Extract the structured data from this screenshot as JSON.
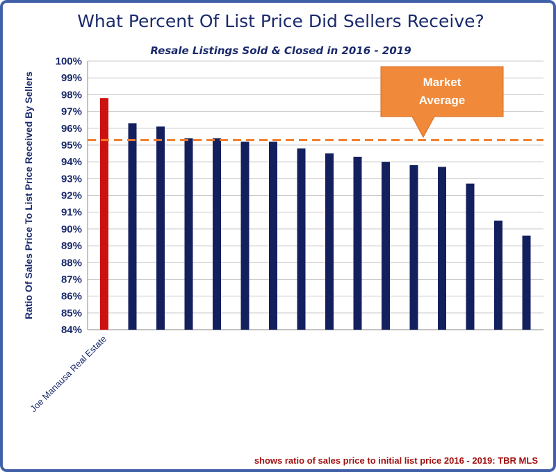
{
  "chart_data": {
    "type": "bar",
    "title": "What Percent Of List Price Did Sellers Receive?",
    "subtitle": "Resale Listings Sold & Closed in 2016 - 2019",
    "ylabel": "Ratio Of Sales Price To List Price Received By Sellers",
    "xlabel": "",
    "ylim": [
      84,
      100
    ],
    "yticks": [
      "84%",
      "85%",
      "86%",
      "87%",
      "88%",
      "89%",
      "90%",
      "91%",
      "92%",
      "93%",
      "94%",
      "95%",
      "96%",
      "97%",
      "98%",
      "99%",
      "100%"
    ],
    "grid": true,
    "categories": [
      "Joe Manausa Real Estate",
      "",
      "",
      "",
      "",
      "",
      "",
      "",
      "",
      "",
      "",
      "",
      "",
      "",
      "",
      ""
    ],
    "values": [
      97.8,
      96.3,
      96.1,
      95.4,
      95.4,
      95.2,
      95.2,
      94.8,
      94.5,
      94.3,
      94.0,
      93.8,
      93.7,
      92.7,
      90.5,
      89.6
    ],
    "highlight_index": 0,
    "colors": {
      "highlight": "#cc1111",
      "bars": "#14205e",
      "reference": "#f07c2a",
      "callout": "#f08a3a"
    },
    "reference_line": {
      "value": 95.3,
      "label_line1": "Market",
      "label_line2": "Average"
    },
    "footnote": "shows ratio of sales price to initial list price  2016 - 2019: TBR MLS"
  }
}
